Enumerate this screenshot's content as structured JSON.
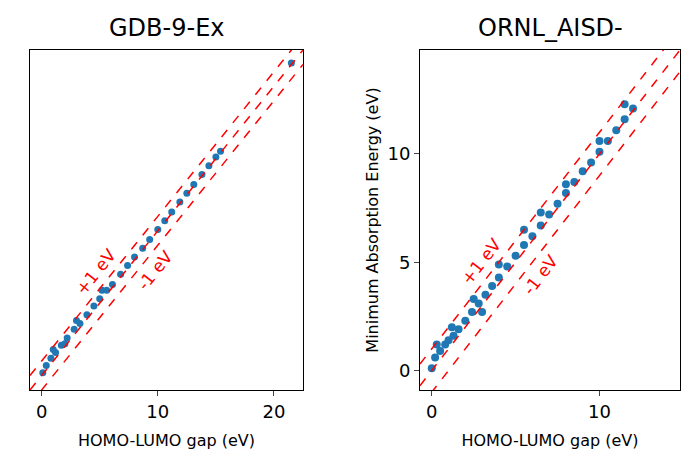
{
  "chart_data": [
    {
      "type": "scatter",
      "title": "GDB-9-Ex",
      "x_label": "HOMO-LUMO gap (eV)",
      "xlim": [
        -1,
        22.5
      ],
      "ylim": [
        -1,
        22.5
      ],
      "xticks": [
        0,
        10,
        20
      ],
      "tick_labels": "x",
      "color": "#1f77b4",
      "marker": "circle",
      "x": [
        0.1,
        0.4,
        0.8,
        1.0,
        1.2,
        1.7,
        2.0,
        2.2,
        2.8,
        3.0,
        3.3,
        3.9,
        4.5,
        5.0,
        5.2,
        5.6,
        6.1,
        6.8,
        7.4,
        8.0,
        8.7,
        9.3,
        10.0,
        10.6,
        11.2,
        11.9,
        12.5,
        13.1,
        13.8,
        14.4,
        15.0,
        15.4,
        21.5
      ],
      "values": [
        0.2,
        0.7,
        1.2,
        1.8,
        1.6,
        2.1,
        2.2,
        2.6,
        3.2,
        3.8,
        3.6,
        4.2,
        4.8,
        5.3,
        5.9,
        5.9,
        6.3,
        7.0,
        7.6,
        8.2,
        8.8,
        9.4,
        10.1,
        10.7,
        11.3,
        12.0,
        12.6,
        13.2,
        13.9,
        14.5,
        15.1,
        15.5,
        21.6
      ],
      "reference_lines": [
        {
          "offset": 1,
          "label": "+1 eV"
        },
        {
          "offset": 0
        },
        {
          "offset": -1,
          "label": "-1 eV"
        }
      ],
      "reference_color": "red",
      "line_style": "dashed"
    },
    {
      "type": "scatter",
      "title": "ORNL_AISD-",
      "x_label": "HOMO-LUMO gap (eV)",
      "y_label": "Minimum Absorption Energy (eV)",
      "xlim": [
        -0.7,
        14.8
      ],
      "ylim": [
        -0.9,
        14.8
      ],
      "xticks": [
        0,
        10
      ],
      "yticks": [
        0,
        5,
        10
      ],
      "color": "#1f77b4",
      "marker": "circle",
      "x": [
        0,
        0.2,
        0.3,
        0.5,
        0.8,
        1.0,
        1.2,
        1.3,
        1.6,
        2.0,
        2.4,
        2.5,
        2.8,
        3.0,
        3.2,
        3.6,
        4.0,
        4.0,
        4.5,
        5.0,
        5.5,
        5.5,
        6.0,
        6.5,
        6.5,
        7.0,
        7.5,
        8.0,
        8.0,
        8.5,
        9.0,
        9.5,
        10.0,
        10.0,
        10.5,
        11.0,
        11.5,
        11.5,
        12.0
      ],
      "values": [
        0.1,
        0.6,
        1.2,
        0.9,
        1.2,
        1.4,
        2.0,
        1.6,
        1.9,
        2.3,
        2.7,
        3.3,
        3.1,
        2.7,
        3.5,
        3.9,
        4.3,
        4.9,
        4.8,
        5.3,
        5.8,
        6.5,
        6.2,
        6.7,
        7.3,
        7.2,
        7.7,
        8.2,
        8.6,
        8.7,
        9.2,
        9.6,
        10.1,
        10.6,
        10.6,
        11.1,
        11.6,
        12.3,
        12.1
      ],
      "reference_lines": [
        {
          "offset": 1,
          "label": "+1 eV"
        },
        {
          "offset": 0
        },
        {
          "offset": -1,
          "label": "-1 eV"
        }
      ],
      "reference_color": "red",
      "line_style": "dashed"
    }
  ]
}
